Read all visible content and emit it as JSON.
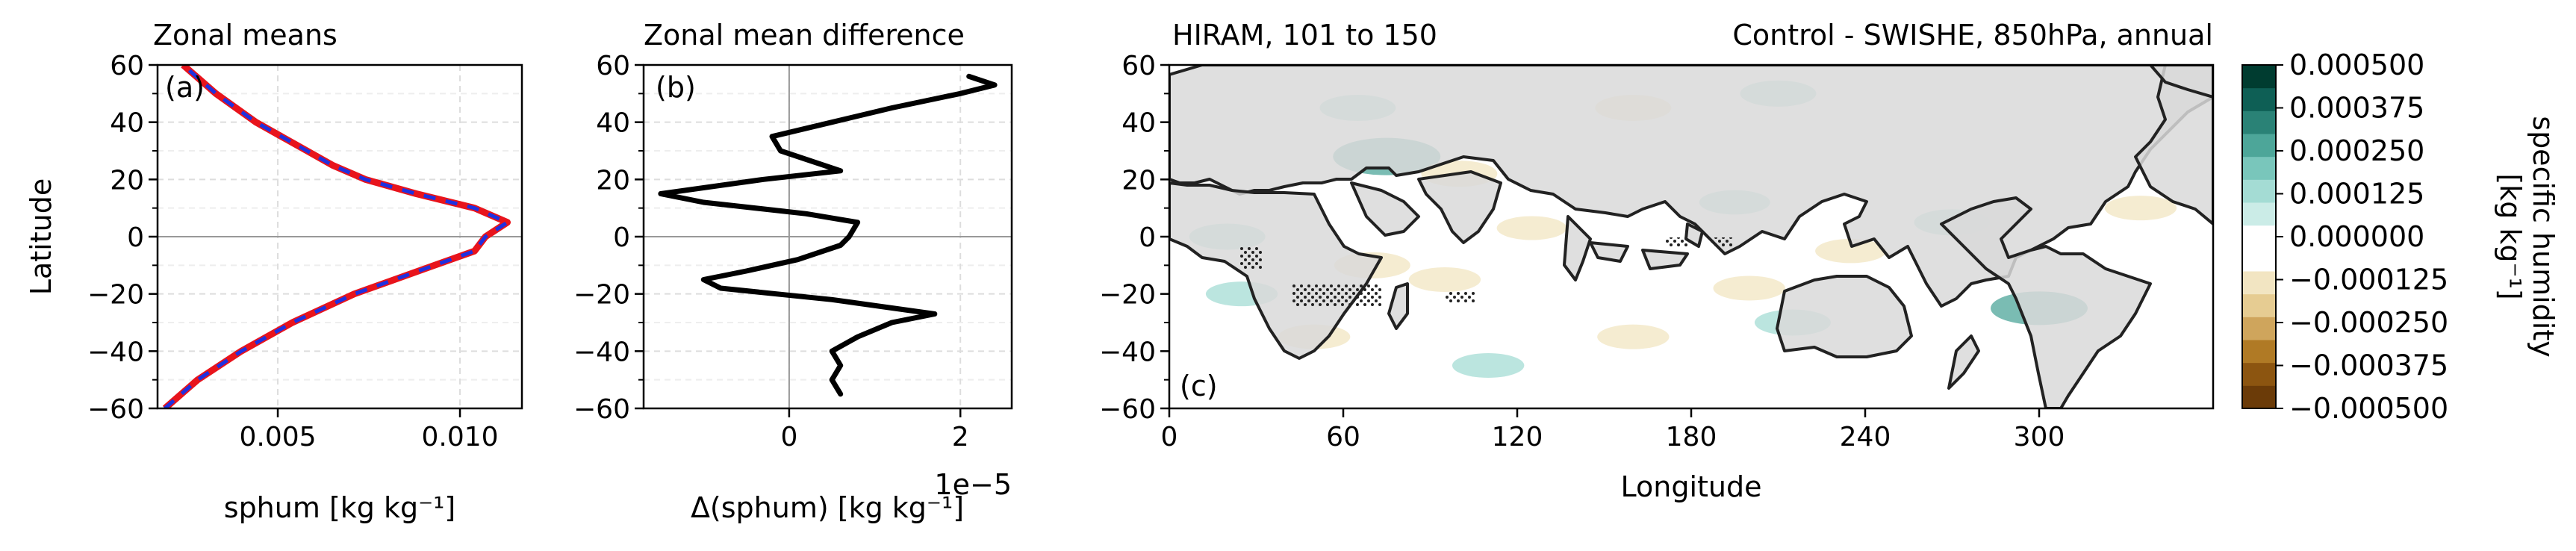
{
  "figure": {
    "colors": {
      "mean_a": "#1f31e0",
      "mean_b": "#e8141c",
      "diff_line": "#000000",
      "land": "#d9d9d9",
      "grid": "#dddddd"
    }
  },
  "chart_data": [
    {
      "type": "line",
      "panel_tag": "(a)",
      "title": "Zonal means",
      "xlabel": "sphum [kg kg⁻¹]",
      "ylabel": "Latitude",
      "xlim": [
        0.0017,
        0.0117
      ],
      "ylim": [
        -60,
        60
      ],
      "xticks": [
        0.005,
        0.01
      ],
      "xtick_labels": [
        "0.005",
        "0.010"
      ],
      "yticks": [
        -60,
        -40,
        -20,
        0,
        20,
        40,
        60
      ],
      "ytick_labels": [
        "−60",
        "−40",
        "−20",
        "0",
        "20",
        "40",
        "60"
      ],
      "grid": true,
      "series": [
        {
          "style": "solid-red",
          "y": [
            -60,
            -50,
            -40,
            -30,
            -20,
            -10,
            -5,
            0,
            5,
            10,
            15,
            20,
            25,
            30,
            40,
            50,
            60
          ],
          "x": [
            0.0019,
            0.0028,
            0.004,
            0.0054,
            0.0071,
            0.0093,
            0.0104,
            0.0107,
            0.0113,
            0.0104,
            0.0088,
            0.0074,
            0.0065,
            0.0058,
            0.0044,
            0.0033,
            0.0024
          ]
        },
        {
          "style": "dashed-blue",
          "y": [
            -60,
            -50,
            -40,
            -30,
            -20,
            -10,
            -5,
            0,
            5,
            10,
            15,
            20,
            25,
            30,
            40,
            50,
            60
          ],
          "x": [
            0.0019,
            0.0028,
            0.004,
            0.0054,
            0.0071,
            0.0093,
            0.0104,
            0.0107,
            0.0113,
            0.0104,
            0.0088,
            0.0074,
            0.0065,
            0.0058,
            0.0044,
            0.0033,
            0.0024
          ]
        }
      ]
    },
    {
      "type": "line",
      "panel_tag": "(b)",
      "title": "Zonal mean difference",
      "xlabel": "Δ(sphum) [kg kg⁻¹]",
      "offset_text": "1e−5",
      "xlim": [
        -1.7,
        2.6
      ],
      "ylim": [
        -60,
        60
      ],
      "xticks": [
        0,
        2
      ],
      "xtick_labels": [
        "0",
        "2"
      ],
      "yticks": [
        -60,
        -40,
        -20,
        0,
        20,
        40,
        60
      ],
      "ytick_labels": [
        "−60",
        "−40",
        "−20",
        "0",
        "20",
        "40",
        "60"
      ],
      "grid": true,
      "series": [
        {
          "y": [
            -55,
            -50,
            -45,
            -40,
            -35,
            -30,
            -27,
            -22,
            -18,
            -15,
            -12,
            -8,
            -3,
            0,
            5,
            8,
            12,
            15,
            20,
            23,
            27,
            30,
            35,
            40,
            45,
            50,
            53,
            56
          ],
          "x": [
            0.6,
            0.5,
            0.6,
            0.5,
            0.8,
            1.2,
            1.7,
            0.5,
            -0.8,
            -1.0,
            -0.5,
            0.1,
            0.6,
            0.7,
            0.8,
            0.2,
            -1.0,
            -1.5,
            -0.3,
            0.6,
            0.2,
            -0.1,
            -0.2,
            0.5,
            1.2,
            2.0,
            2.4,
            2.1
          ]
        }
      ]
    },
    {
      "type": "heatmap",
      "panel_tag": "(c)",
      "title_left": "HIRAM, 101 to 150",
      "title_right": "Control - SWISHE, 850hPa, annual",
      "xlabel": "Longitude",
      "xlim": [
        0,
        360
      ],
      "ylim": [
        -60,
        60
      ],
      "xticks": [
        0,
        60,
        120,
        180,
        240,
        300
      ],
      "xtick_labels": [
        "0",
        "60",
        "120",
        "180",
        "240",
        "300"
      ],
      "yticks": [
        -60,
        -40,
        -20,
        0,
        20,
        40,
        60
      ],
      "ytick_labels": [
        "−60",
        "−40",
        "−20",
        "0",
        "20",
        "40",
        "60"
      ],
      "colorbar": {
        "label": "specific humidity\n[kg kg⁻¹]",
        "levels": [
          -0.0005,
          -0.000375,
          -0.00025,
          -0.000125,
          0.0,
          0.000125,
          0.00025,
          0.000375,
          0.0005
        ],
        "tick_labels": [
          "0.000500",
          "0.000375",
          "0.000250",
          "0.000125",
          "0.000000",
          "−0.000125",
          "−0.000250",
          "−0.000375",
          "−0.000500"
        ],
        "colors": [
          "#6b3b08",
          "#8c5510",
          "#b07a25",
          "#cfa55c",
          "#e6cc92",
          "#f2e5c2",
          "#ffffff",
          "#ffffff",
          "#cbece7",
          "#a4dcd4",
          "#79c6bb",
          "#4da699",
          "#2a8276",
          "#0e5f55",
          "#003c30"
        ]
      },
      "anomaly_patches": [
        {
          "lon": 75,
          "lat": 28,
          "value": 0.0003
        },
        {
          "lon": 65,
          "lat": 45,
          "value": 0.00015
        },
        {
          "lon": 100,
          "lat": 22,
          "value": -0.00015
        },
        {
          "lon": 210,
          "lat": 50,
          "value": 0.00015
        },
        {
          "lon": 160,
          "lat": 45,
          "value": -0.00015
        },
        {
          "lon": 195,
          "lat": 12,
          "value": 0.000125
        },
        {
          "lon": 270,
          "lat": 5,
          "value": 0.00015
        },
        {
          "lon": 235,
          "lat": -5,
          "value": -0.000125
        },
        {
          "lon": 125,
          "lat": 3,
          "value": -0.00012
        },
        {
          "lon": 70,
          "lat": -10,
          "value": -0.00015
        },
        {
          "lon": 95,
          "lat": -15,
          "value": -0.00013
        },
        {
          "lon": 300,
          "lat": -25,
          "value": 0.00025
        },
        {
          "lon": 200,
          "lat": -18,
          "value": -0.00013
        },
        {
          "lon": 215,
          "lat": -30,
          "value": 0.00015
        },
        {
          "lon": 160,
          "lat": -35,
          "value": -0.00013
        },
        {
          "lon": 50,
          "lat": -35,
          "value": -0.00013
        },
        {
          "lon": 20,
          "lat": 0,
          "value": 0.00015
        },
        {
          "lon": 335,
          "lat": 10,
          "value": -0.00013
        },
        {
          "lon": 25,
          "lat": -20,
          "value": 0.00013
        },
        {
          "lon": 110,
          "lat": -45,
          "value": 0.00013
        }
      ]
    }
  ]
}
